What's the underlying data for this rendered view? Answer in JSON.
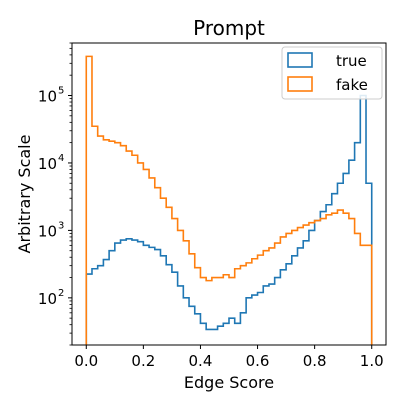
{
  "chart_data": {
    "type": "line",
    "title": "Prompt",
    "xlabel": "Edge Score",
    "ylabel": "Arbitrary Scale",
    "xlim": [
      -0.05,
      1.05
    ],
    "ylim": [
      20,
      600000
    ],
    "yscale": "log",
    "x_ticks": [
      0.0,
      0.2,
      0.4,
      0.6,
      0.8,
      1.0
    ],
    "x_tick_labels": [
      "0.0",
      "0.2",
      "0.4",
      "0.6",
      "0.8",
      "1.0"
    ],
    "y_ticks": [
      100,
      1000,
      10000,
      100000
    ],
    "y_tick_labels": [
      "10",
      "10",
      "10",
      "10"
    ],
    "y_tick_exponents": [
      "2",
      "3",
      "4",
      "5"
    ],
    "legend_position": "upper-right",
    "bin_width": 0.02,
    "series": [
      {
        "name": "true",
        "color": "#1f77b4",
        "values": [
          225,
          270,
          300,
          370,
          500,
          650,
          720,
          750,
          720,
          680,
          600,
          560,
          520,
          420,
          310,
          240,
          150,
          100,
          75,
          58,
          42,
          34,
          34,
          38,
          42,
          50,
          42,
          60,
          100,
          110,
          120,
          150,
          160,
          200,
          260,
          320,
          420,
          550,
          700,
          1000,
          1400,
          1900,
          2400,
          3500,
          5000,
          7000,
          11000,
          20000,
          100000,
          5000
        ]
      },
      {
        "name": "fake",
        "color": "#ff7f0e",
        "values": [
          380000,
          35000,
          25000,
          22000,
          21000,
          20000,
          18000,
          15000,
          13000,
          10000,
          8000,
          6000,
          4300,
          3000,
          2200,
          1500,
          1000,
          700,
          450,
          280,
          200,
          180,
          200,
          200,
          220,
          200,
          270,
          300,
          330,
          380,
          430,
          500,
          550,
          650,
          800,
          900,
          1000,
          1100,
          1200,
          1300,
          1400,
          1500,
          1700,
          1800,
          2000,
          1800,
          1500,
          900,
          600,
          600
        ]
      }
    ]
  }
}
